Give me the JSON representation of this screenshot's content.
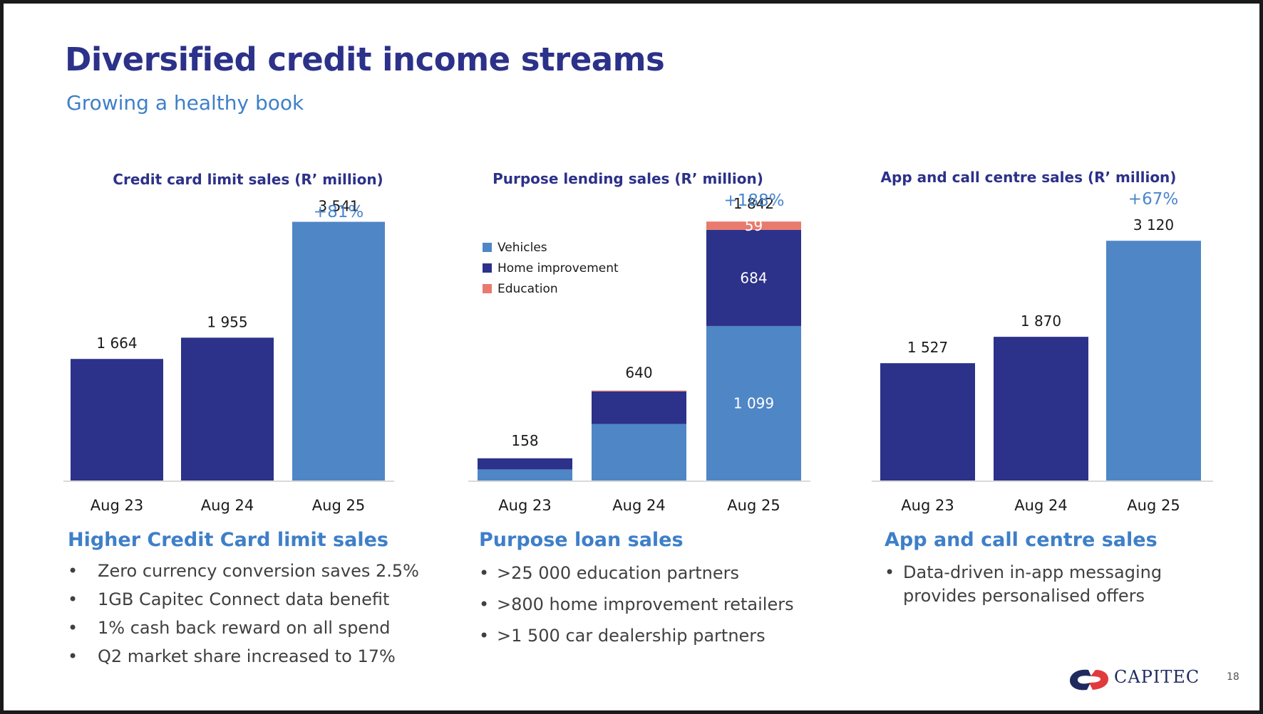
{
  "header": {
    "title": "Diversified credit income streams",
    "subtitle": "Growing a healthy book"
  },
  "colors": {
    "navy": "#2c3189",
    "light_blue": "#4f86c6",
    "education": "#e97a6e",
    "title": "#2c3189",
    "accent": "#3e7fc8"
  },
  "chart_data": [
    {
      "type": "bar",
      "title": "Credit card limit sales (R’ million)",
      "categories": [
        "Aug 23",
        "Aug 24",
        "Aug 25"
      ],
      "values": [
        1664,
        1955,
        3541
      ],
      "value_labels": [
        "1 664",
        "1 955",
        "3 541"
      ],
      "growth_label": "+81%",
      "bar_colors": [
        "#2c3189",
        "#2c3189",
        "#4f86c6"
      ],
      "xlabel": "",
      "ylabel": "",
      "ylim": [
        0,
        3800
      ],
      "grid": false
    },
    {
      "type": "bar",
      "stacked": true,
      "title": "Purpose lending sales (R’ million)",
      "categories": [
        "Aug 23",
        "Aug 24",
        "Aug 25"
      ],
      "series": [
        {
          "name": "Vehicles",
          "color": "#4f86c6",
          "values": [
            79,
            402,
            1099
          ],
          "labels": [
            "",
            "",
            "1 099"
          ]
        },
        {
          "name": "Home improvement",
          "color": "#2c3189",
          "values": [
            79,
            232,
            684
          ],
          "labels": [
            "",
            "",
            "684"
          ]
        },
        {
          "name": "Education",
          "color": "#e97a6e",
          "values": [
            0,
            6,
            59
          ],
          "labels": [
            "",
            "",
            "59"
          ]
        }
      ],
      "totals": [
        158,
        640,
        1842
      ],
      "total_labels": [
        "158",
        "640",
        "1 842"
      ],
      "growth_label": "+188%",
      "legend_position": "top-left",
      "xlabel": "",
      "ylabel": "",
      "ylim": [
        0,
        2000
      ],
      "grid": false
    },
    {
      "type": "bar",
      "title": "App and call centre sales (R’ million)",
      "categories": [
        "Aug 23",
        "Aug 24",
        "Aug 25"
      ],
      "values": [
        1527,
        1870,
        3120
      ],
      "value_labels": [
        "1 527",
        "1 870",
        "3 120"
      ],
      "growth_label": "+67%",
      "bar_colors": [
        "#2c3189",
        "#2c3189",
        "#4f86c6"
      ],
      "xlabel": "",
      "ylabel": "",
      "ylim": [
        0,
        3400
      ],
      "grid": false
    }
  ],
  "sections": [
    {
      "heading": "Higher Credit Card limit sales",
      "bullets": [
        "Zero currency conversion saves 2.5%",
        "1GB Capitec Connect data benefit",
        "1% cash back reward on all spend",
        "Q2 market share increased to 17%"
      ]
    },
    {
      "heading": "Purpose loan sales",
      "bullets": [
        ">25 000 education partners",
        ">800 home improvement retailers",
        ">1 500 car dealership partners"
      ]
    },
    {
      "heading": "App and call centre sales",
      "bullets": [
        "Data-driven in-app messaging provides personalised offers"
      ]
    }
  ],
  "bullet_glyph": "•",
  "footer": {
    "logo_text": "CAPITEC",
    "page_number": "18"
  }
}
